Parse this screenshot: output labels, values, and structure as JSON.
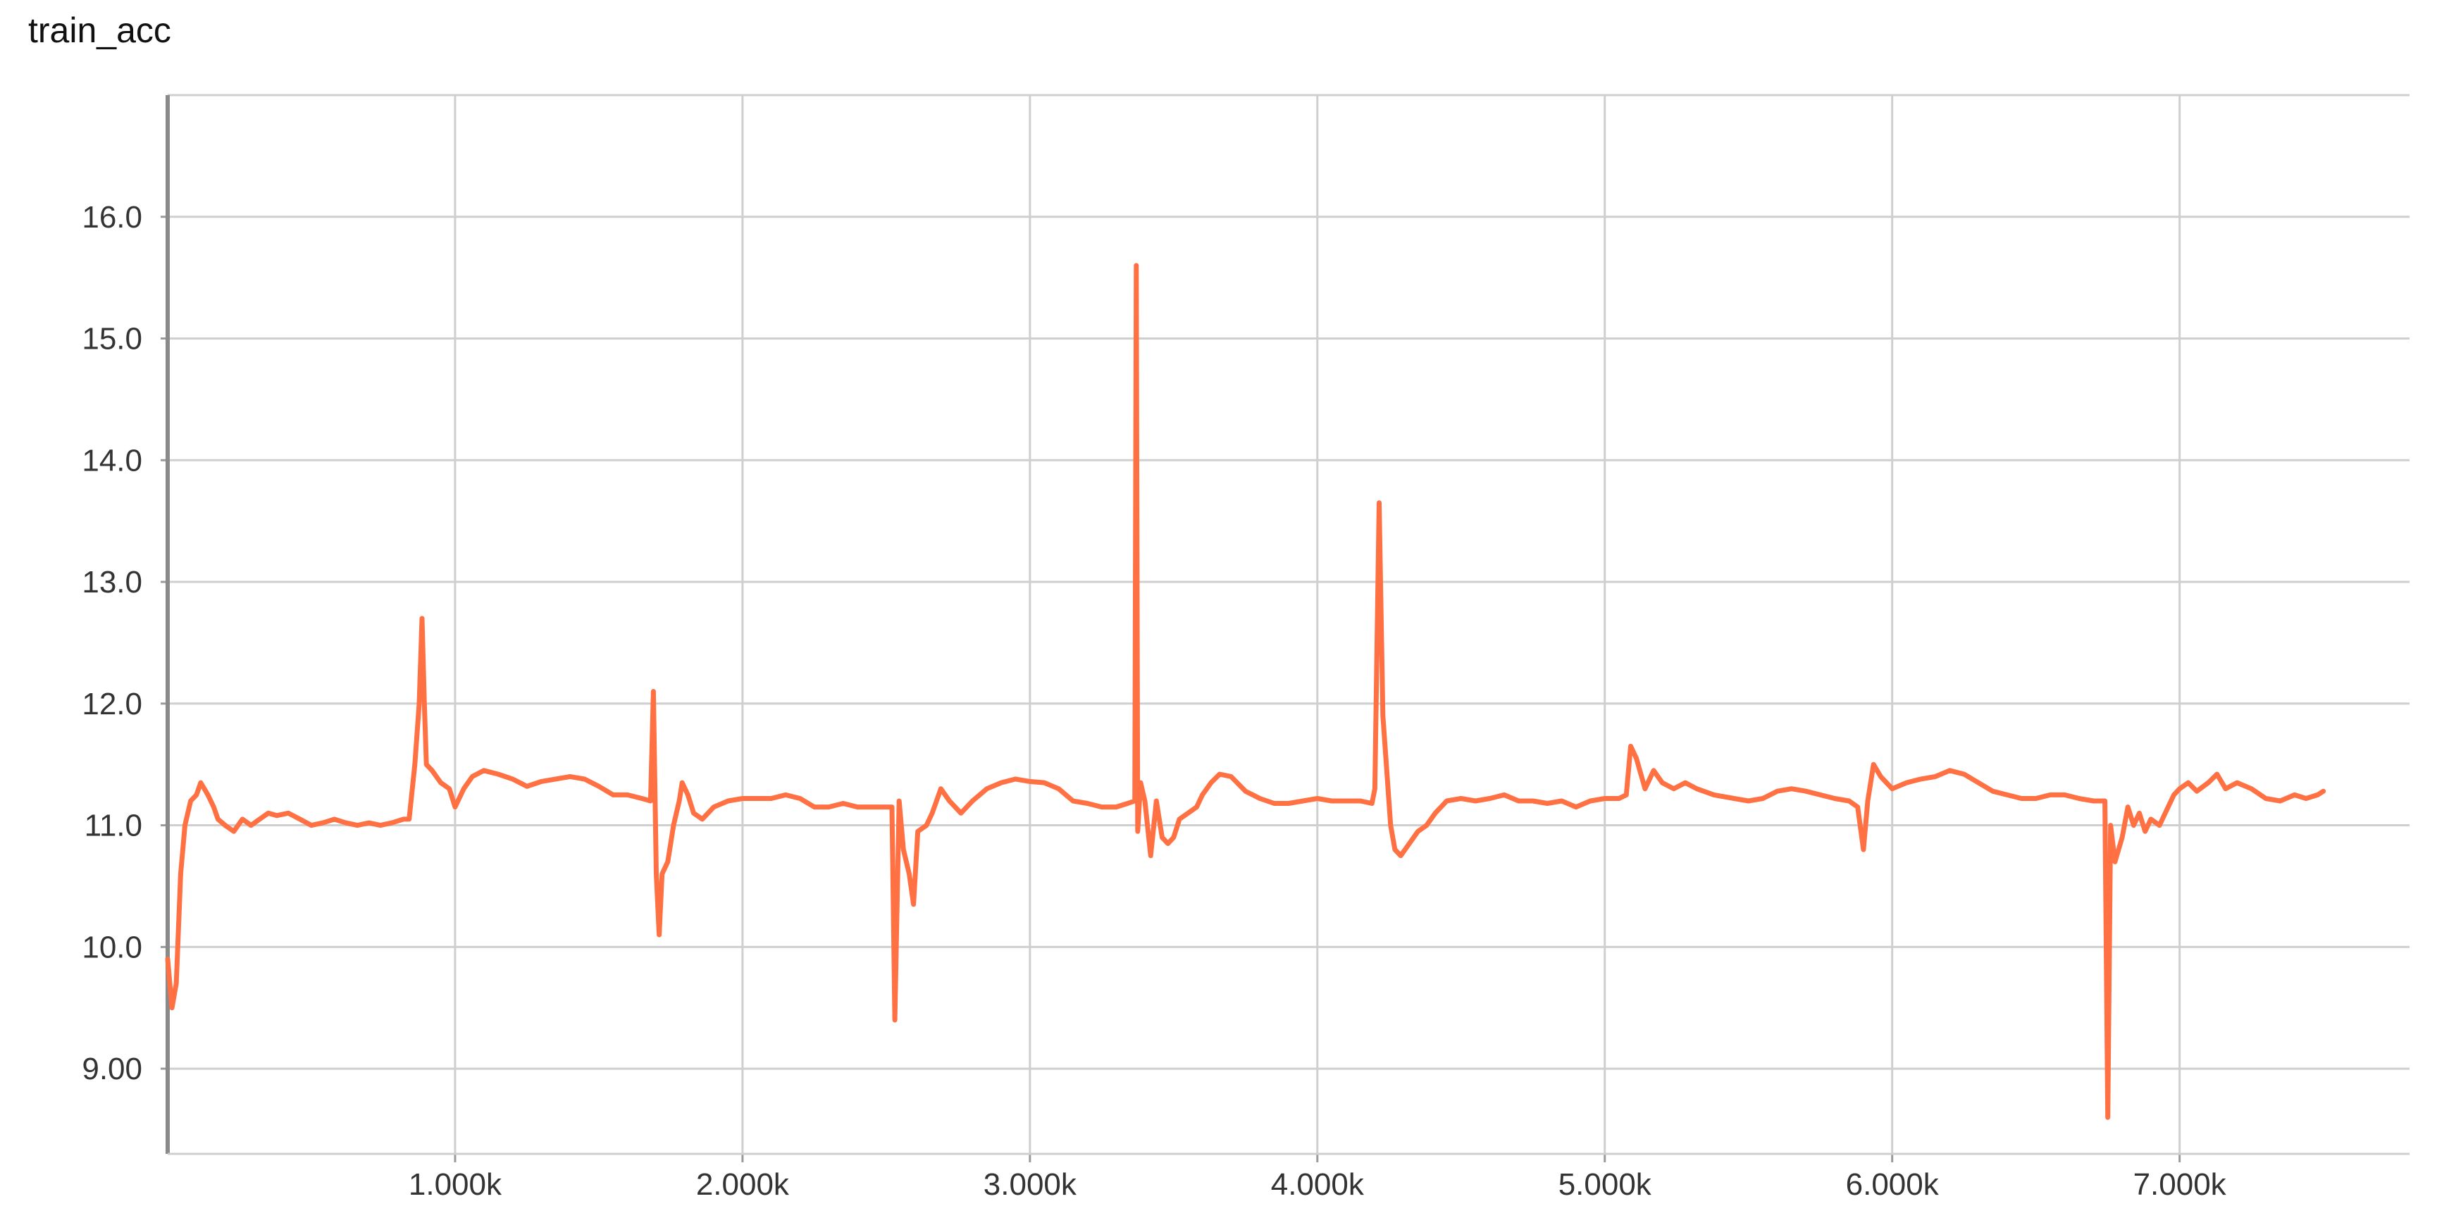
{
  "chart_data": {
    "type": "line",
    "title": "train_acc",
    "xlabel": "",
    "ylabel": "",
    "xlim": [
      0,
      7800
    ],
    "ylim": [
      8.3,
      17.0
    ],
    "x_ticks": [
      1000,
      2000,
      3000,
      4000,
      5000,
      6000,
      7000
    ],
    "x_tick_labels": [
      "1.000k",
      "2.000k",
      "3.000k",
      "4.000k",
      "5.000k",
      "6.000k",
      "7.000k"
    ],
    "y_ticks": [
      9.0,
      10.0,
      11.0,
      12.0,
      13.0,
      14.0,
      15.0,
      16.0
    ],
    "y_tick_labels": [
      "9.00",
      "10.0",
      "11.0",
      "12.0",
      "13.0",
      "14.0",
      "15.0",
      "16.0"
    ],
    "grid": true,
    "series": [
      {
        "color": "#ff7043",
        "points": [
          [
            0,
            9.9
          ],
          [
            15,
            9.5
          ],
          [
            30,
            9.7
          ],
          [
            45,
            10.6
          ],
          [
            60,
            11.0
          ],
          [
            80,
            11.2
          ],
          [
            100,
            11.25
          ],
          [
            115,
            11.35
          ],
          [
            140,
            11.25
          ],
          [
            160,
            11.15
          ],
          [
            175,
            11.05
          ],
          [
            200,
            11.0
          ],
          [
            230,
            10.95
          ],
          [
            260,
            11.05
          ],
          [
            290,
            11.0
          ],
          [
            320,
            11.05
          ],
          [
            350,
            11.1
          ],
          [
            380,
            11.08
          ],
          [
            420,
            11.1
          ],
          [
            460,
            11.05
          ],
          [
            500,
            11.0
          ],
          [
            540,
            11.02
          ],
          [
            580,
            11.05
          ],
          [
            620,
            11.02
          ],
          [
            660,
            11.0
          ],
          [
            700,
            11.02
          ],
          [
            740,
            11.0
          ],
          [
            780,
            11.02
          ],
          [
            820,
            11.05
          ],
          [
            840,
            11.05
          ],
          [
            860,
            11.5
          ],
          [
            875,
            12.0
          ],
          [
            885,
            12.7
          ],
          [
            893,
            12.0
          ],
          [
            900,
            11.5
          ],
          [
            920,
            11.45
          ],
          [
            950,
            11.35
          ],
          [
            980,
            11.3
          ],
          [
            1000,
            11.15
          ],
          [
            1030,
            11.3
          ],
          [
            1060,
            11.4
          ],
          [
            1100,
            11.45
          ],
          [
            1150,
            11.42
          ],
          [
            1200,
            11.38
          ],
          [
            1250,
            11.32
          ],
          [
            1300,
            11.36
          ],
          [
            1350,
            11.38
          ],
          [
            1400,
            11.4
          ],
          [
            1450,
            11.38
          ],
          [
            1500,
            11.32
          ],
          [
            1550,
            11.25
          ],
          [
            1600,
            11.25
          ],
          [
            1650,
            11.22
          ],
          [
            1680,
            11.2
          ],
          [
            1690,
            12.1
          ],
          [
            1700,
            10.6
          ],
          [
            1710,
            10.1
          ],
          [
            1720,
            10.6
          ],
          [
            1740,
            10.7
          ],
          [
            1760,
            11.0
          ],
          [
            1780,
            11.2
          ],
          [
            1790,
            11.35
          ],
          [
            1810,
            11.25
          ],
          [
            1830,
            11.1
          ],
          [
            1860,
            11.05
          ],
          [
            1900,
            11.15
          ],
          [
            1950,
            11.2
          ],
          [
            2000,
            11.22
          ],
          [
            2050,
            11.22
          ],
          [
            2100,
            11.22
          ],
          [
            2150,
            11.25
          ],
          [
            2200,
            11.22
          ],
          [
            2250,
            11.15
          ],
          [
            2300,
            11.15
          ],
          [
            2350,
            11.18
          ],
          [
            2400,
            11.15
          ],
          [
            2450,
            11.15
          ],
          [
            2500,
            11.15
          ],
          [
            2520,
            11.15
          ],
          [
            2530,
            9.4
          ],
          [
            2545,
            11.2
          ],
          [
            2560,
            10.8
          ],
          [
            2580,
            10.6
          ],
          [
            2595,
            10.35
          ],
          [
            2610,
            10.95
          ],
          [
            2640,
            11.0
          ],
          [
            2660,
            11.1
          ],
          [
            2690,
            11.3
          ],
          [
            2720,
            11.2
          ],
          [
            2760,
            11.1
          ],
          [
            2800,
            11.2
          ],
          [
            2850,
            11.3
          ],
          [
            2900,
            11.35
          ],
          [
            2950,
            11.38
          ],
          [
            3000,
            11.36
          ],
          [
            3050,
            11.35
          ],
          [
            3100,
            11.3
          ],
          [
            3150,
            11.2
          ],
          [
            3200,
            11.18
          ],
          [
            3250,
            11.15
          ],
          [
            3300,
            11.15
          ],
          [
            3340,
            11.18
          ],
          [
            3365,
            11.2
          ],
          [
            3370,
            15.6
          ],
          [
            3375,
            10.95
          ],
          [
            3385,
            11.35
          ],
          [
            3400,
            11.2
          ],
          [
            3420,
            10.75
          ],
          [
            3440,
            11.2
          ],
          [
            3460,
            10.9
          ],
          [
            3480,
            10.85
          ],
          [
            3500,
            10.9
          ],
          [
            3520,
            11.05
          ],
          [
            3550,
            11.1
          ],
          [
            3580,
            11.15
          ],
          [
            3600,
            11.25
          ],
          [
            3630,
            11.35
          ],
          [
            3660,
            11.42
          ],
          [
            3700,
            11.4
          ],
          [
            3750,
            11.28
          ],
          [
            3800,
            11.22
          ],
          [
            3850,
            11.18
          ],
          [
            3900,
            11.18
          ],
          [
            3950,
            11.2
          ],
          [
            4000,
            11.22
          ],
          [
            4050,
            11.2
          ],
          [
            4100,
            11.2
          ],
          [
            4150,
            11.2
          ],
          [
            4190,
            11.18
          ],
          [
            4200,
            11.3
          ],
          [
            4215,
            13.65
          ],
          [
            4228,
            11.9
          ],
          [
            4240,
            11.5
          ],
          [
            4255,
            11.0
          ],
          [
            4270,
            10.8
          ],
          [
            4290,
            10.75
          ],
          [
            4320,
            10.85
          ],
          [
            4350,
            10.95
          ],
          [
            4380,
            11.0
          ],
          [
            4410,
            11.1
          ],
          [
            4450,
            11.2
          ],
          [
            4500,
            11.22
          ],
          [
            4550,
            11.2
          ],
          [
            4600,
            11.22
          ],
          [
            4650,
            11.25
          ],
          [
            4700,
            11.2
          ],
          [
            4750,
            11.2
          ],
          [
            4800,
            11.18
          ],
          [
            4850,
            11.2
          ],
          [
            4900,
            11.15
          ],
          [
            4950,
            11.2
          ],
          [
            5000,
            11.22
          ],
          [
            5050,
            11.22
          ],
          [
            5075,
            11.25
          ],
          [
            5090,
            11.65
          ],
          [
            5110,
            11.55
          ],
          [
            5140,
            11.3
          ],
          [
            5170,
            11.45
          ],
          [
            5200,
            11.35
          ],
          [
            5240,
            11.3
          ],
          [
            5280,
            11.35
          ],
          [
            5320,
            11.3
          ],
          [
            5380,
            11.25
          ],
          [
            5450,
            11.22
          ],
          [
            5500,
            11.2
          ],
          [
            5550,
            11.22
          ],
          [
            5600,
            11.28
          ],
          [
            5650,
            11.3
          ],
          [
            5700,
            11.28
          ],
          [
            5750,
            11.25
          ],
          [
            5800,
            11.22
          ],
          [
            5850,
            11.2
          ],
          [
            5880,
            11.15
          ],
          [
            5900,
            10.8
          ],
          [
            5915,
            11.2
          ],
          [
            5935,
            11.5
          ],
          [
            5960,
            11.4
          ],
          [
            6000,
            11.3
          ],
          [
            6050,
            11.35
          ],
          [
            6100,
            11.38
          ],
          [
            6150,
            11.4
          ],
          [
            6200,
            11.45
          ],
          [
            6250,
            11.42
          ],
          [
            6300,
            11.35
          ],
          [
            6350,
            11.28
          ],
          [
            6400,
            11.25
          ],
          [
            6450,
            11.22
          ],
          [
            6500,
            11.22
          ],
          [
            6550,
            11.25
          ],
          [
            6600,
            11.25
          ],
          [
            6650,
            11.22
          ],
          [
            6700,
            11.2
          ],
          [
            6740,
            11.2
          ],
          [
            6750,
            8.6
          ],
          [
            6760,
            11.0
          ],
          [
            6775,
            10.7
          ],
          [
            6800,
            10.9
          ],
          [
            6820,
            11.15
          ],
          [
            6840,
            11.0
          ],
          [
            6860,
            11.1
          ],
          [
            6880,
            10.95
          ],
          [
            6900,
            11.05
          ],
          [
            6930,
            11.0
          ],
          [
            6950,
            11.1
          ],
          [
            6980,
            11.25
          ],
          [
            7000,
            11.3
          ],
          [
            7030,
            11.35
          ],
          [
            7060,
            11.28
          ],
          [
            7100,
            11.35
          ],
          [
            7130,
            11.42
          ],
          [
            7160,
            11.3
          ],
          [
            7200,
            11.35
          ],
          [
            7250,
            11.3
          ],
          [
            7300,
            11.22
          ],
          [
            7350,
            11.2
          ],
          [
            7400,
            11.25
          ],
          [
            7440,
            11.22
          ],
          [
            7480,
            11.25
          ],
          [
            7500,
            11.28
          ]
        ]
      }
    ]
  }
}
